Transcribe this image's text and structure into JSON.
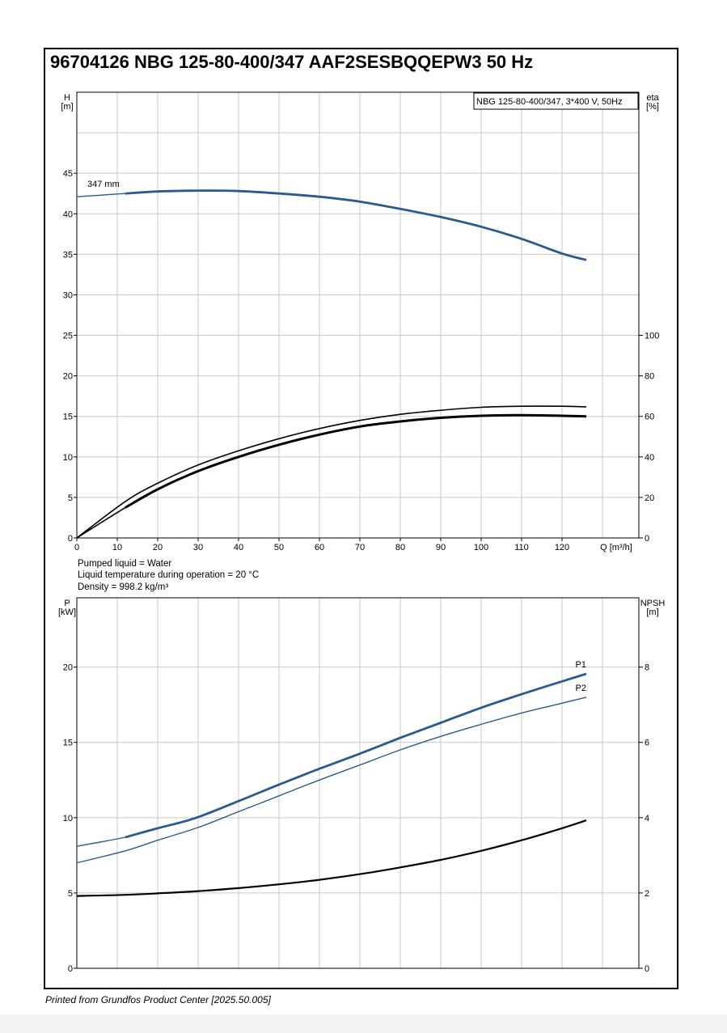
{
  "title": "96704126 NBG 125-80-400/347 AAF2SESBQQEPW3 50 Hz",
  "footer": "Printed from Grundfos Product Center [2025.50.005]",
  "info": {
    "liquid": "Pumped liquid = Water",
    "temperature": "Liquid temperature during operation = 20 °C",
    "density": "Density = 998.2 kg/m³"
  },
  "colors": {
    "blue": "#2b5a8f",
    "black": "#000000",
    "grid": "#c8c8c8"
  },
  "chart_data": [
    {
      "type": "line",
      "title": "",
      "legend_box": "NBG 125-80-400/347, 3*400 V, 50Hz",
      "xlabel": "Q [m³/h]",
      "x_ticks": [
        "0",
        "10",
        "20",
        "30",
        "40",
        "50",
        "60",
        "70",
        "80",
        "90",
        "100",
        "110",
        "120"
      ],
      "xlim": [
        0,
        139
      ],
      "y_left_label": {
        "line1": "H",
        "line2": "[m]"
      },
      "y_left_ticks": [
        "0",
        "5",
        "10",
        "15",
        "20",
        "25",
        "30",
        "35",
        "40",
        "45"
      ],
      "ylim_left": [
        0,
        55
      ],
      "y_right_label": {
        "line1": "eta",
        "line2": "[%]"
      },
      "y_right_ticks": [
        "0",
        "20",
        "40",
        "60",
        "80",
        "100"
      ],
      "ylim_right": [
        0,
        220
      ],
      "grid": true,
      "series": [
        {
          "name": "347 mm",
          "axis": "left",
          "color": "blue",
          "x": [
            0,
            12,
            20,
            30,
            40,
            50,
            60,
            70,
            80,
            90,
            100,
            110,
            120,
            126
          ],
          "y": [
            42.1,
            42.5,
            42.75,
            42.85,
            42.8,
            42.5,
            42.1,
            41.5,
            40.6,
            39.6,
            38.4,
            36.9,
            35.1,
            34.3
          ],
          "thick_from": 12
        },
        {
          "name": "",
          "axis": "right",
          "color": "black",
          "width": 1.6,
          "x": [
            0,
            12,
            20,
            30,
            40,
            50,
            60,
            70,
            80,
            90,
            100,
            110,
            120,
            126
          ],
          "y": [
            0,
            18,
            27,
            36,
            43,
            49,
            54,
            58,
            61,
            63,
            64.5,
            65,
            65,
            64.7
          ]
        },
        {
          "name": "",
          "axis": "right",
          "color": "black",
          "width": 1.6,
          "x": [
            0,
            12,
            20,
            30,
            40,
            50,
            60,
            70,
            80,
            90,
            100,
            110,
            120,
            126
          ],
          "y": [
            0,
            15,
            24,
            33,
            40,
            46,
            51,
            55,
            57.5,
            59.3,
            60.3,
            60.6,
            60.3,
            60
          ],
          "thick_from": 12
        }
      ]
    },
    {
      "type": "line",
      "title": "",
      "xlim": [
        0,
        139
      ],
      "y_left_label": {
        "line1": "P",
        "line2": "[kW]"
      },
      "y_left_ticks": [
        "0",
        "5",
        "10",
        "15",
        "20"
      ],
      "ylim_left": [
        0,
        24.6
      ],
      "y_right_label": {
        "line1": "NPSH",
        "line2": "[m]"
      },
      "y_right_ticks": [
        "0",
        "2",
        "4",
        "6",
        "8"
      ],
      "ylim_right": [
        0,
        9.84
      ],
      "grid": true,
      "series": [
        {
          "name": "P1",
          "axis": "left",
          "color": "blue",
          "x": [
            0,
            12,
            20,
            29,
            40,
            50,
            60,
            70,
            80,
            90,
            100,
            110,
            120,
            126
          ],
          "y": [
            8.1,
            8.7,
            9.3,
            9.95,
            11.1,
            12.2,
            13.25,
            14.25,
            15.3,
            16.3,
            17.3,
            18.2,
            19.05,
            19.55
          ],
          "thick_from": 12
        },
        {
          "name": "P2",
          "axis": "left",
          "color": "blue",
          "x": [
            0,
            12,
            20,
            30,
            40,
            50,
            60,
            70,
            80,
            90,
            100,
            110,
            120,
            126
          ],
          "y": [
            7.0,
            7.8,
            8.5,
            9.35,
            10.4,
            11.45,
            12.5,
            13.5,
            14.5,
            15.4,
            16.2,
            16.95,
            17.6,
            18.0
          ]
        },
        {
          "name": "",
          "axis": "right",
          "color": "black",
          "width": 2.2,
          "x": [
            0,
            12,
            20,
            30,
            40,
            50,
            60,
            70,
            80,
            90,
            100,
            110,
            120,
            126
          ],
          "y": [
            1.92,
            1.95,
            1.99,
            2.05,
            2.13,
            2.23,
            2.35,
            2.5,
            2.68,
            2.88,
            3.12,
            3.4,
            3.72,
            3.93
          ]
        }
      ]
    }
  ]
}
